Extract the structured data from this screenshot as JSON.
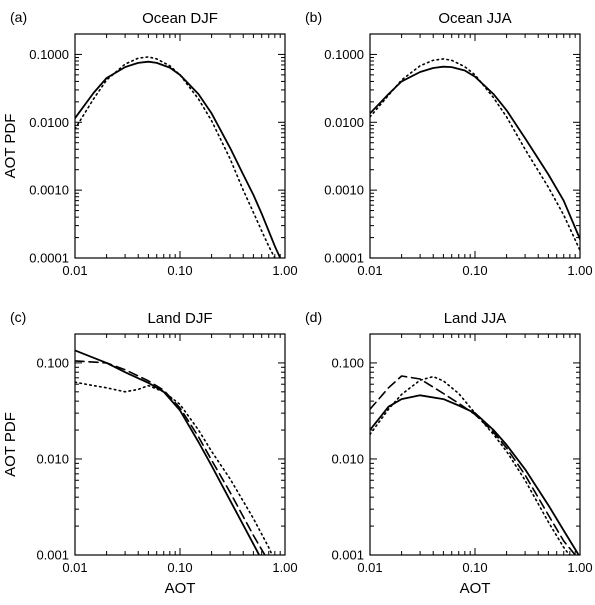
{
  "figure": {
    "panels": [
      {
        "letter": "(a)",
        "title": "Ocean DJF",
        "ylabel": "AOT PDF",
        "xlabel": ""
      },
      {
        "letter": "(b)",
        "title": "Ocean JJA",
        "ylabel": "",
        "xlabel": ""
      },
      {
        "letter": "(c)",
        "title": "Land DJF",
        "ylabel": "AOT PDF",
        "xlabel": "AOT"
      },
      {
        "letter": "(d)",
        "title": "Land JJA",
        "ylabel": "",
        "xlabel": "AOT"
      }
    ]
  },
  "chart_data": [
    {
      "type": "line",
      "title": "Ocean DJF",
      "xlabel": "",
      "ylabel": "AOT PDF",
      "xscale": "log",
      "yscale": "log",
      "xlim": [
        0.01,
        1.0
      ],
      "ylim": [
        0.0001,
        0.2
      ],
      "xticks": [
        0.01,
        0.1,
        1.0
      ],
      "xtick_labels": [
        "0.01",
        "0.10",
        "1.00"
      ],
      "yticks": [
        0.0001,
        0.001,
        0.01,
        0.1
      ],
      "ytick_labels": [
        "0.0001",
        "0.0010",
        "0.0100",
        "0.1000"
      ],
      "grid": false,
      "series": [
        {
          "style": "solid",
          "x": [
            0.01,
            0.015,
            0.02,
            0.03,
            0.04,
            0.05,
            0.06,
            0.08,
            0.1,
            0.15,
            0.2,
            0.3,
            0.4,
            0.5,
            0.6,
            0.7,
            0.8,
            0.9
          ],
          "y": [
            0.0115,
            0.027,
            0.045,
            0.065,
            0.075,
            0.078,
            0.075,
            0.064,
            0.05,
            0.026,
            0.0135,
            0.0042,
            0.0017,
            0.00085,
            0.00045,
            0.00025,
            0.00015,
            0.0001
          ]
        },
        {
          "style": "dotted",
          "x": [
            0.01,
            0.015,
            0.02,
            0.03,
            0.04,
            0.05,
            0.06,
            0.08,
            0.1,
            0.15,
            0.2,
            0.3,
            0.4,
            0.5,
            0.6,
            0.7,
            0.8
          ],
          "y": [
            0.008,
            0.022,
            0.042,
            0.072,
            0.088,
            0.092,
            0.086,
            0.068,
            0.05,
            0.022,
            0.0105,
            0.0029,
            0.001,
            0.00047,
            0.00025,
            0.00015,
            0.0001
          ]
        }
      ]
    },
    {
      "type": "line",
      "title": "Ocean JJA",
      "xlabel": "",
      "ylabel": "",
      "xscale": "log",
      "yscale": "log",
      "xlim": [
        0.01,
        1.0
      ],
      "ylim": [
        0.0001,
        0.2
      ],
      "xticks": [
        0.01,
        0.1,
        1.0
      ],
      "xtick_labels": [
        "0.01",
        "0.10",
        "1.00"
      ],
      "yticks": [
        0.0001,
        0.001,
        0.01,
        0.1
      ],
      "ytick_labels": [
        "0.0001",
        "0.0010",
        "0.0100",
        "0.1000"
      ],
      "grid": false,
      "series": [
        {
          "style": "solid",
          "x": [
            0.01,
            0.015,
            0.02,
            0.03,
            0.04,
            0.05,
            0.06,
            0.08,
            0.1,
            0.15,
            0.2,
            0.3,
            0.5,
            0.7,
            1.0
          ],
          "y": [
            0.0135,
            0.026,
            0.04,
            0.055,
            0.063,
            0.066,
            0.065,
            0.058,
            0.047,
            0.026,
            0.015,
            0.0058,
            0.0017,
            0.0007,
            0.00019
          ]
        },
        {
          "style": "dotted",
          "x": [
            0.01,
            0.015,
            0.02,
            0.03,
            0.04,
            0.05,
            0.06,
            0.08,
            0.1,
            0.15,
            0.2,
            0.3,
            0.5,
            0.7,
            1.0
          ],
          "y": [
            0.012,
            0.025,
            0.042,
            0.068,
            0.082,
            0.086,
            0.082,
            0.066,
            0.05,
            0.023,
            0.012,
            0.004,
            0.0011,
            0.00043,
            0.00013
          ]
        }
      ]
    },
    {
      "type": "line",
      "title": "Land DJF",
      "xlabel": "AOT",
      "ylabel": "AOT PDF",
      "xscale": "log",
      "yscale": "log",
      "xlim": [
        0.01,
        1.0
      ],
      "ylim": [
        0.001,
        0.2
      ],
      "xticks": [
        0.01,
        0.1,
        1.0
      ],
      "xtick_labels": [
        "0.01",
        "0.10",
        "1.00"
      ],
      "yticks": [
        0.001,
        0.01,
        0.1
      ],
      "ytick_labels": [
        "0.001",
        "0.010",
        "0.100"
      ],
      "grid": false,
      "series": [
        {
          "style": "solid",
          "x": [
            0.01,
            0.02,
            0.03,
            0.05,
            0.07,
            0.1,
            0.15,
            0.2,
            0.3,
            0.5,
            0.7
          ],
          "y": [
            0.135,
            0.1,
            0.08,
            0.062,
            0.05,
            0.032,
            0.015,
            0.0085,
            0.0037,
            0.0013,
            0.00065
          ]
        },
        {
          "style": "dashed",
          "x": [
            0.01,
            0.02,
            0.03,
            0.05,
            0.07,
            0.1,
            0.15,
            0.2,
            0.3,
            0.5,
            0.75
          ],
          "y": [
            0.105,
            0.1,
            0.085,
            0.065,
            0.052,
            0.034,
            0.017,
            0.0097,
            0.0045,
            0.0016,
            0.00075
          ]
        },
        {
          "style": "dotted",
          "x": [
            0.01,
            0.015,
            0.02,
            0.03,
            0.04,
            0.05,
            0.07,
            0.1,
            0.15,
            0.2,
            0.3,
            0.5,
            0.7,
            0.85
          ],
          "y": [
            0.063,
            0.058,
            0.055,
            0.05,
            0.053,
            0.058,
            0.05,
            0.037,
            0.02,
            0.012,
            0.0062,
            0.0024,
            0.0012,
            0.00075
          ]
        }
      ]
    },
    {
      "type": "line",
      "title": "Land JJA",
      "xlabel": "AOT",
      "ylabel": "",
      "xscale": "log",
      "yscale": "log",
      "xlim": [
        0.01,
        1.0
      ],
      "ylim": [
        0.001,
        0.2
      ],
      "xticks": [
        0.01,
        0.1,
        1.0
      ],
      "xtick_labels": [
        "0.01",
        "0.10",
        "1.00"
      ],
      "yticks": [
        0.001,
        0.01,
        0.1
      ],
      "ytick_labels": [
        "0.001",
        "0.010",
        "0.100"
      ],
      "grid": false,
      "series": [
        {
          "style": "solid",
          "x": [
            0.01,
            0.015,
            0.02,
            0.03,
            0.05,
            0.07,
            0.1,
            0.15,
            0.2,
            0.3,
            0.5,
            0.7,
            1.0
          ],
          "y": [
            0.02,
            0.035,
            0.042,
            0.046,
            0.042,
            0.036,
            0.03,
            0.02,
            0.014,
            0.0078,
            0.0033,
            0.0018,
            0.00095
          ]
        },
        {
          "style": "dashed",
          "x": [
            0.01,
            0.015,
            0.02,
            0.03,
            0.04,
            0.05,
            0.07,
            0.1,
            0.15,
            0.2,
            0.3,
            0.5,
            0.7,
            0.9
          ],
          "y": [
            0.033,
            0.055,
            0.073,
            0.068,
            0.056,
            0.048,
            0.038,
            0.029,
            0.019,
            0.013,
            0.0068,
            0.0026,
            0.0014,
            0.001
          ]
        },
        {
          "style": "dotted",
          "x": [
            0.01,
            0.015,
            0.02,
            0.03,
            0.04,
            0.05,
            0.07,
            0.1,
            0.15,
            0.2,
            0.3,
            0.5,
            0.7,
            0.85
          ],
          "y": [
            0.018,
            0.033,
            0.047,
            0.066,
            0.072,
            0.065,
            0.048,
            0.03,
            0.018,
            0.012,
            0.006,
            0.0022,
            0.0012,
            0.0009
          ]
        }
      ]
    }
  ]
}
